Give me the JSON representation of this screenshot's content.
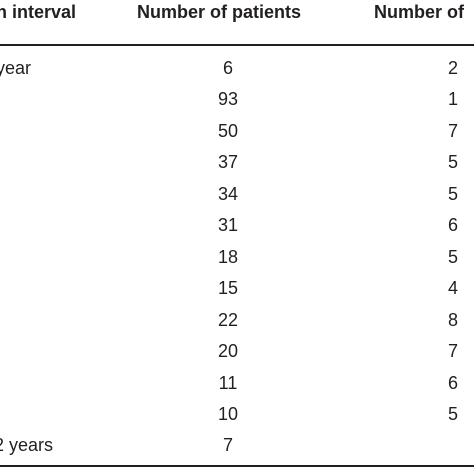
{
  "table": {
    "headers": [
      "n interval",
      "Number of patients",
      "Number of"
    ],
    "rows": [
      [
        "year",
        "6",
        "2"
      ],
      [
        "",
        "93",
        "1"
      ],
      [
        "",
        "50",
        "7"
      ],
      [
        "",
        "37",
        "5"
      ],
      [
        "",
        "34",
        "5"
      ],
      [
        "",
        "31",
        "6"
      ],
      [
        "",
        "18",
        "5"
      ],
      [
        "",
        "15",
        "4"
      ],
      [
        "",
        "22",
        "8"
      ],
      [
        "",
        "20",
        "7"
      ],
      [
        "",
        "11",
        "6"
      ],
      [
        "",
        "10",
        "5"
      ],
      [
        "2 years",
        "7",
        ""
      ]
    ]
  }
}
